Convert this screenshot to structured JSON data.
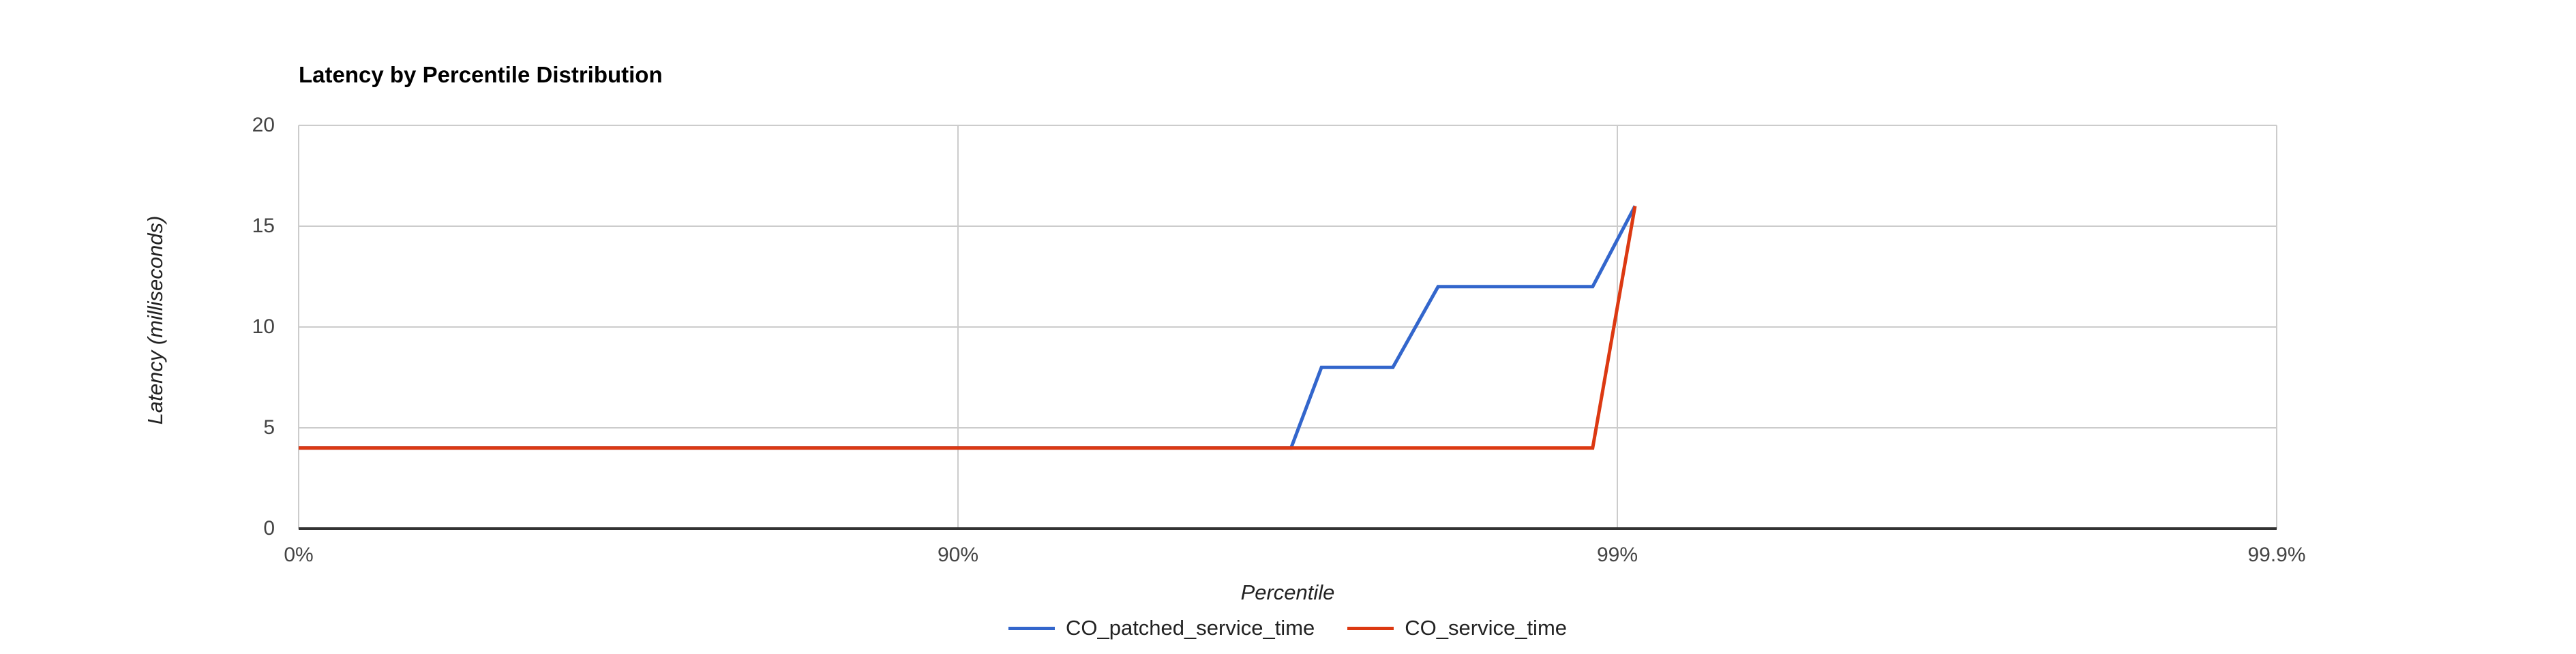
{
  "chart_data": {
    "type": "line",
    "title": "Latency by Percentile Distribution",
    "xlabel": "Percentile",
    "ylabel": "Latency (milliseconds)",
    "x_axis": {
      "scale": "log-percentile",
      "max_decades": 3,
      "ticks": [
        {
          "p": 0,
          "label": "0%"
        },
        {
          "p": 90,
          "label": "90%"
        },
        {
          "p": 99,
          "label": "99%"
        },
        {
          "p": 99.9,
          "label": "99.9%"
        }
      ]
    },
    "y_axis": {
      "min": 0,
      "max": 20,
      "ticks": [
        0,
        5,
        10,
        15,
        20
      ],
      "unit": "milliseconds"
    },
    "grid": true,
    "legend_position": "bottom",
    "colors": {
      "gridline": "#cccccc",
      "axis_baseline": "#333333",
      "tick_text": "#444444",
      "series_blue": "#3366cc",
      "series_red": "#dc3912"
    },
    "series": [
      {
        "name": "CO_patched_service_time",
        "color": "#3366cc",
        "points": [
          [
            0,
            4
          ],
          [
            96.875,
            4
          ],
          [
            97.19,
            8
          ],
          [
            97.81,
            8
          ],
          [
            98.13,
            12
          ],
          [
            98.91,
            12
          ],
          [
            99.06,
            16
          ]
        ]
      },
      {
        "name": "CO_service_time",
        "color": "#dc3912",
        "points": [
          [
            0,
            4
          ],
          [
            98.91,
            4
          ],
          [
            99.06,
            16
          ]
        ]
      }
    ]
  }
}
